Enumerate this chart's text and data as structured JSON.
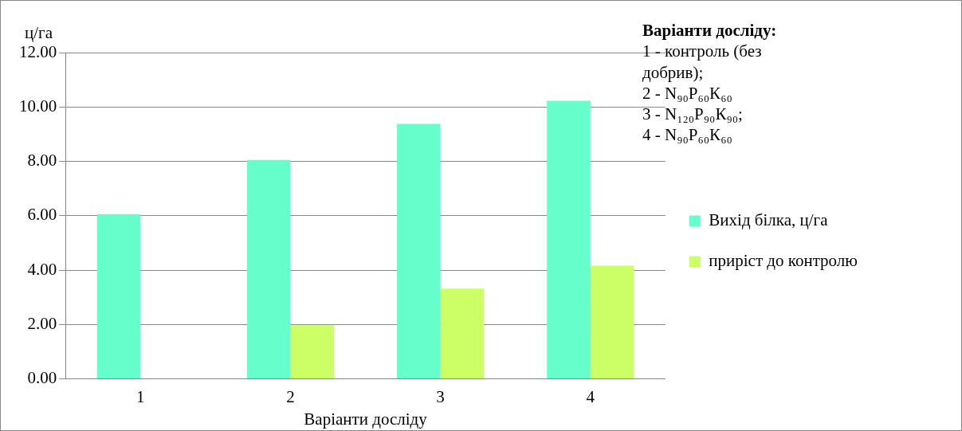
{
  "chart_data": {
    "type": "bar",
    "xlabel": "Варіанти досліду",
    "ylabel": "ц/га",
    "categories": [
      "1",
      "2",
      "3",
      "4"
    ],
    "series": [
      {
        "name": "Вихід білка, ц/га",
        "color": "#66ffcc",
        "values": [
          6.06,
          8.05,
          9.38,
          10.23
        ]
      },
      {
        "name": "приріст до контролю",
        "color": "#ccff66",
        "values": [
          null,
          1.97,
          3.32,
          4.16
        ]
      }
    ],
    "ylim": [
      0,
      12
    ],
    "yticks": [
      {
        "value": 0,
        "label": "0.00"
      },
      {
        "value": 2,
        "label": "2.00"
      },
      {
        "value": 4,
        "label": "4.00"
      },
      {
        "value": 6,
        "label": "6.00"
      },
      {
        "value": 8,
        "label": "8.00"
      },
      {
        "value": 10,
        "label": "10.00"
      },
      {
        "value": 12,
        "label": "12.00"
      }
    ],
    "grid": "y",
    "legend": "right",
    "annotations": [
      "Варіанти досліду:",
      "1 - контроль  (без добрив);",
      "2 - N₉₀P₆₀К₆₀",
      "3 - N₁₂₀P₉₀К₉₀;",
      "4 - N₉₀P₆₀К₆₀"
    ]
  }
}
